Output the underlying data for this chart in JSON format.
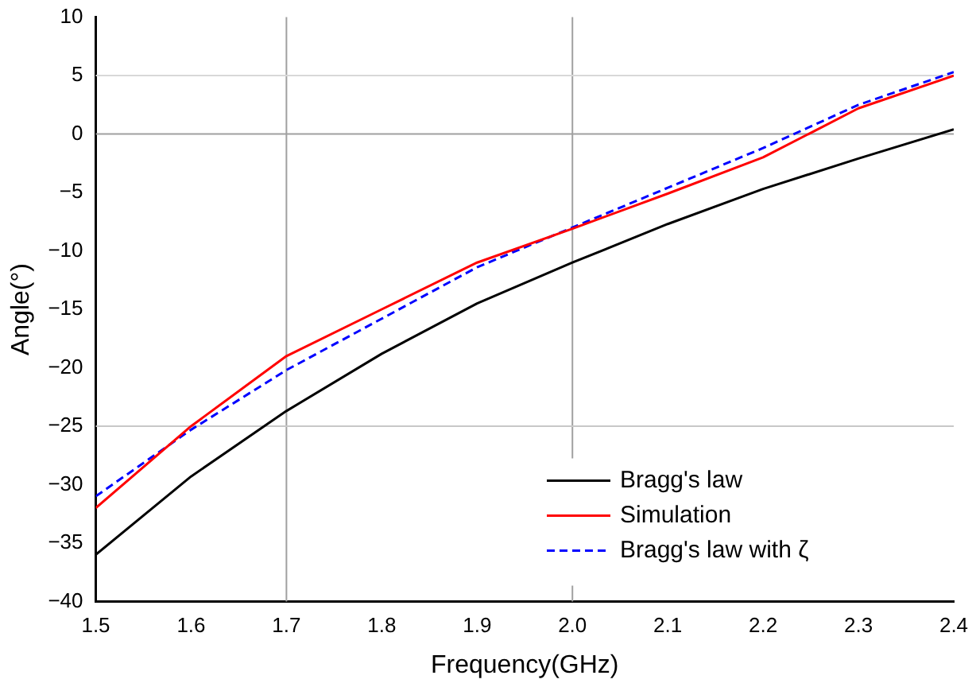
{
  "chart_data": {
    "type": "line",
    "xlabel": "Frequency(GHz)",
    "ylabel": "Angle(°)",
    "x": [
      1.5,
      1.6,
      1.7,
      1.8,
      1.9,
      2.0,
      2.1,
      2.2,
      2.3,
      2.4
    ],
    "series": [
      {
        "name": "Bragg's law",
        "color": "#000000",
        "line_style": "solid",
        "values": [
          -36,
          -29.3,
          -23.7,
          -18.8,
          -14.5,
          -11,
          -7.7,
          -4.7,
          -2.1,
          0.4
        ]
      },
      {
        "name": "Simulation",
        "color": "#ff0000",
        "line_style": "solid",
        "values": [
          -32,
          -25,
          -19,
          -15,
          -11,
          -8.1,
          -5.1,
          -2,
          2.2,
          5
        ]
      },
      {
        "name": "Bragg's law with ζ",
        "color": "#0000ff",
        "line_style": "dashed",
        "values": [
          -31,
          -25.3,
          -20.2,
          -15.8,
          -11.4,
          -8,
          -4.6,
          -1.2,
          2.5,
          5.3
        ]
      }
    ],
    "xlim": [
      1.5,
      2.4
    ],
    "xticks": [
      1.5,
      1.6,
      1.7,
      1.8,
      1.9,
      {
        "value": 2,
        "label": "2.0"
      },
      2.1,
      2.2,
      2.3,
      2.4
    ],
    "ylim": [
      -40,
      10
    ],
    "yticks": [
      -40,
      -35,
      -30,
      -25,
      -20,
      -15,
      -10,
      -5,
      0,
      5,
      10
    ],
    "ref_lines": [
      {
        "axis": "x",
        "value": 1.7,
        "color": "#a0a0a0"
      },
      {
        "axis": "x",
        "value": 2,
        "color": "#a0a0a0"
      },
      {
        "axis": "y",
        "value": 5,
        "color": "#d8d8d8"
      },
      {
        "axis": "y",
        "value": 0,
        "color": "#a0a0a0"
      },
      {
        "axis": "y",
        "value": -25,
        "color": "#c8c8c8"
      }
    ],
    "grid": false,
    "legend": "bottom right",
    "marker": "none"
  }
}
